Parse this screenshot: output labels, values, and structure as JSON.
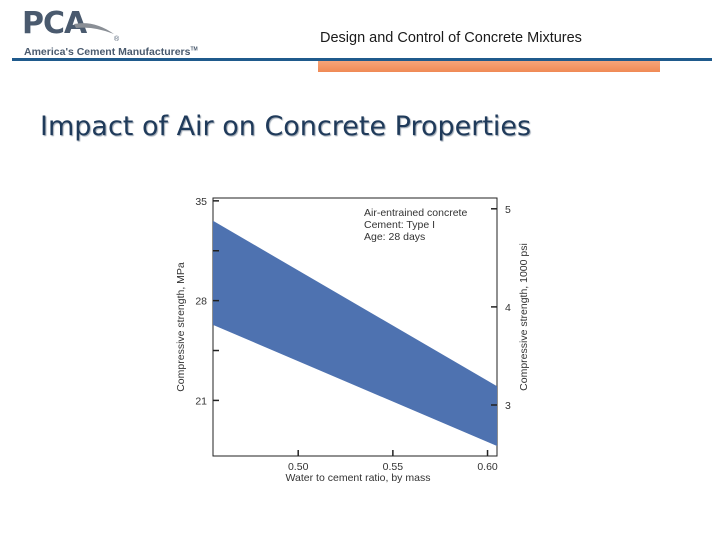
{
  "logo": {
    "mark": "PCA",
    "registered": "®",
    "tagline": "America's Cement Manufacturers",
    "trademark": "TM"
  },
  "header": {
    "title": "Design and Control of Concrete Mixtures"
  },
  "slide": {
    "title": "Impact of Air on Concrete Properties"
  },
  "colors": {
    "band_fill": "#4e72b0",
    "rule_blue": "#1f5a8c",
    "rule_orange": "#f08a55",
    "title_color": "#1f3a5a"
  },
  "chart_data": {
    "type": "area",
    "title": "",
    "xlabel": "Water to cement ratio, by mass",
    "ylabel_left": "Compressive strength, MPa",
    "ylabel_right": "Compressive strength, 1000 psi",
    "xlim": [
      0.455,
      0.605
    ],
    "ylim_left": [
      17.1,
      35.2
    ],
    "ylim_right": [
      2.48,
      5.11
    ],
    "x_ticks": [
      0.5,
      0.55,
      0.6
    ],
    "x_tick_labels": [
      "0.50",
      "0.55",
      "0.60"
    ],
    "y_left_ticks": [
      21,
      28,
      35
    ],
    "y_left_tick_labels": [
      "21",
      "28",
      "35"
    ],
    "y_left_minor_ticks": [
      24.5,
      31.5
    ],
    "y_right_ticks": [
      3,
      4,
      5
    ],
    "y_right_tick_labels": [
      "3",
      "4",
      "5"
    ],
    "grid": false,
    "legend": {
      "placement": "top-right",
      "lines": [
        "Air-entrained concrete",
        "Cement: Type I",
        "Age: 28 days"
      ]
    },
    "series": [
      {
        "x": [
          0.455,
          0.605
        ],
        "upper": [
          33.6,
          22.0
        ],
        "lower": [
          26.3,
          17.8
        ]
      }
    ]
  }
}
